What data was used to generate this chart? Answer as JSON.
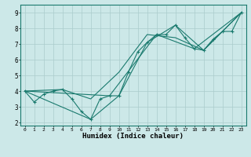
{
  "xlabel": "Humidex (Indice chaleur)",
  "xlim": [
    -0.5,
    23.5
  ],
  "ylim": [
    1.8,
    9.5
  ],
  "xticks": [
    0,
    1,
    2,
    3,
    4,
    5,
    6,
    7,
    8,
    9,
    10,
    11,
    12,
    13,
    14,
    15,
    16,
    17,
    18,
    19,
    20,
    21,
    22,
    23
  ],
  "yticks": [
    2,
    3,
    4,
    5,
    6,
    7,
    8,
    9
  ],
  "background_color": "#cce8e8",
  "grid_color": "#aacccc",
  "line_color": "#1a7a6e",
  "line1_x": [
    0,
    1,
    2,
    3,
    4,
    5,
    6,
    7,
    8,
    9,
    10,
    11,
    12,
    13,
    14,
    15,
    16,
    17,
    18,
    19,
    20,
    21,
    22,
    23
  ],
  "line1_y": [
    4.0,
    3.3,
    3.8,
    4.0,
    4.1,
    3.5,
    2.7,
    2.2,
    3.5,
    3.7,
    3.7,
    5.2,
    6.5,
    7.1,
    7.6,
    7.6,
    8.2,
    7.4,
    6.7,
    6.6,
    7.3,
    7.8,
    7.8,
    9.0
  ],
  "line2_x": [
    0,
    7,
    10,
    13,
    16,
    19,
    23
  ],
  "line2_y": [
    4.0,
    2.2,
    3.7,
    7.1,
    8.2,
    6.6,
    9.0
  ],
  "line3_x": [
    0,
    4,
    7,
    10,
    13,
    16,
    19,
    23
  ],
  "line3_y": [
    4.0,
    4.1,
    3.5,
    5.2,
    7.6,
    7.4,
    6.6,
    9.0
  ],
  "line4_x": [
    0,
    9,
    14,
    18,
    23
  ],
  "line4_y": [
    4.0,
    3.7,
    7.6,
    6.7,
    9.0
  ]
}
